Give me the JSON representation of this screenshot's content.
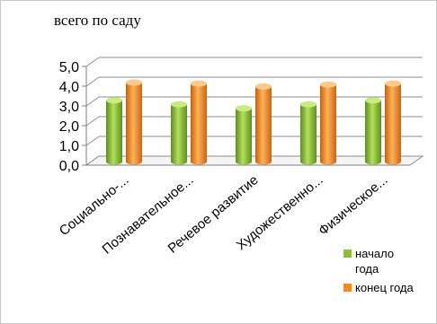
{
  "chart_data": {
    "type": "bar",
    "title": "всего по саду",
    "categories": [
      "Социально-...",
      "Познавательное...",
      "Речевое развитие",
      "Художественно...",
      "Физическое..."
    ],
    "series": [
      {
        "name": "начало года",
        "values": [
          3.1,
          2.9,
          2.7,
          2.9,
          3.1
        ],
        "color": "#8bbf3a"
      },
      {
        "name": "конец года",
        "values": [
          4.0,
          3.95,
          3.8,
          3.9,
          3.95
        ],
        "color": "#f28a1e"
      }
    ],
    "ylim": [
      0,
      5
    ],
    "yticks": [
      "0,0",
      "1,0",
      "2,0",
      "3,0",
      "4,0",
      "5,0"
    ],
    "grid": true,
    "legend": "bottom-right"
  }
}
